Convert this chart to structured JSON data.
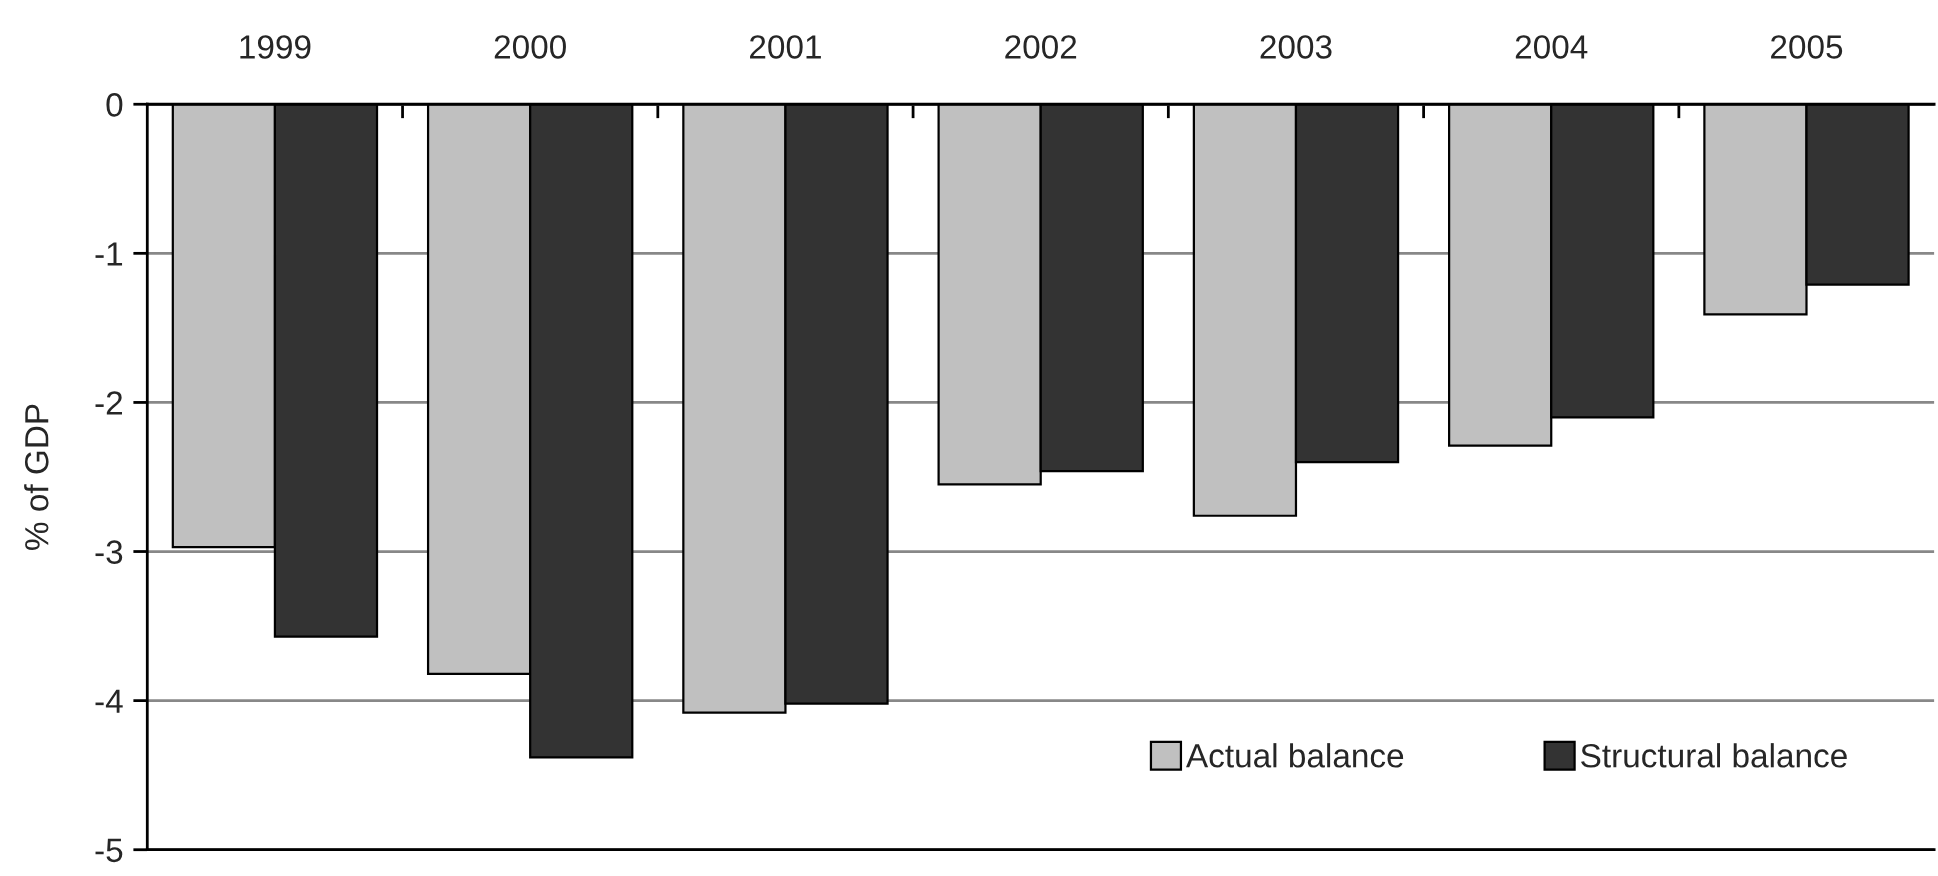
{
  "chart_data": {
    "type": "bar",
    "categories": [
      "1999",
      "2000",
      "2001",
      "2002",
      "2003",
      "2004",
      "2005"
    ],
    "ylabel": "% of GDP",
    "series": [
      {
        "name": "Actual balance",
        "color": "#c0c0c0",
        "values": [
          -2.97,
          -3.82,
          -4.08,
          -2.55,
          -2.76,
          -2.29,
          -1.41
        ]
      },
      {
        "name": "Structural balance",
        "color": "#333333",
        "values": [
          -3.57,
          -4.38,
          -4.02,
          -2.46,
          -2.4,
          -2.1,
          -1.21
        ]
      }
    ],
    "ylim": [
      -5,
      0
    ],
    "yticks": [
      -5,
      -4,
      -3,
      -2,
      -1,
      0
    ],
    "grid": "y",
    "legend": "bottom right"
  }
}
